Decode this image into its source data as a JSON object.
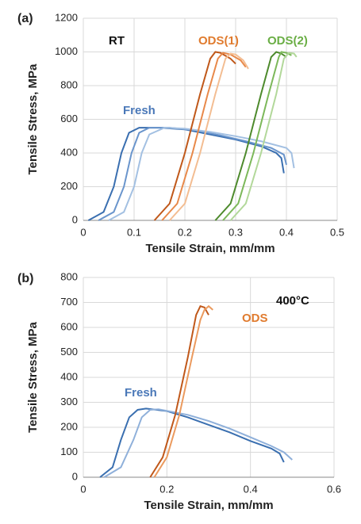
{
  "chart_data": [
    {
      "type": "line",
      "label": "(a)",
      "xlabel": "Tensile Strain, mm/mm",
      "ylabel": "Tensile Stress, MPa",
      "xlim": [
        0,
        0.5
      ],
      "xticks": [
        0,
        0.1,
        0.2,
        0.3,
        0.4,
        0.5
      ],
      "ylim": [
        0,
        1200
      ],
      "yticks": [
        0,
        200,
        400,
        600,
        800,
        1000,
        1200
      ],
      "grid": true,
      "annotations": [
        {
          "text": "RT",
          "color": "#111111"
        },
        {
          "text": "Fresh",
          "color": "#4a78b8"
        },
        {
          "text": "ODS(1)",
          "color": "#e07b2e"
        },
        {
          "text": "ODS(2)",
          "color": "#6aae45"
        }
      ],
      "series": [
        {
          "color": "#3a6fb0",
          "x": [
            0.01,
            0.04,
            0.06,
            0.075,
            0.09,
            0.11,
            0.15,
            0.2,
            0.25,
            0.3,
            0.35,
            0.38,
            0.39,
            0.395
          ],
          "values": [
            0,
            50,
            200,
            400,
            520,
            550,
            550,
            540,
            510,
            480,
            440,
            400,
            370,
            280
          ]
        },
        {
          "color": "#6a95cc",
          "x": [
            0.03,
            0.06,
            0.08,
            0.095,
            0.11,
            0.13,
            0.17,
            0.22,
            0.27,
            0.32,
            0.37,
            0.395,
            0.4
          ],
          "values": [
            0,
            50,
            200,
            400,
            520,
            550,
            550,
            535,
            505,
            470,
            430,
            390,
            330
          ]
        },
        {
          "color": "#a3c0e2",
          "x": [
            0.05,
            0.08,
            0.1,
            0.115,
            0.13,
            0.16,
            0.2,
            0.25,
            0.3,
            0.35,
            0.4,
            0.41,
            0.415
          ],
          "values": [
            0,
            50,
            200,
            400,
            510,
            550,
            545,
            525,
            500,
            470,
            430,
            400,
            310
          ]
        },
        {
          "color": "#c0581a",
          "x": [
            0.14,
            0.17,
            0.2,
            0.23,
            0.25,
            0.26,
            0.27,
            0.29,
            0.3
          ],
          "values": [
            0,
            100,
            400,
            750,
            960,
            1000,
            995,
            960,
            930
          ]
        },
        {
          "color": "#e8894a",
          "x": [
            0.155,
            0.185,
            0.215,
            0.245,
            0.265,
            0.275,
            0.29,
            0.31,
            0.32
          ],
          "values": [
            0,
            100,
            400,
            750,
            960,
            995,
            985,
            950,
            910
          ]
        },
        {
          "color": "#f3bd92",
          "x": [
            0.17,
            0.2,
            0.23,
            0.26,
            0.28,
            0.29,
            0.3,
            0.315,
            0.325
          ],
          "values": [
            0,
            100,
            400,
            750,
            960,
            990,
            985,
            950,
            900
          ]
        },
        {
          "color": "#4d8a2c",
          "x": [
            0.26,
            0.29,
            0.32,
            0.35,
            0.37,
            0.38,
            0.39,
            0.4
          ],
          "values": [
            0,
            100,
            400,
            750,
            970,
            1000,
            990,
            970
          ]
        },
        {
          "color": "#7cb85a",
          "x": [
            0.275,
            0.305,
            0.335,
            0.365,
            0.385,
            0.39,
            0.4,
            0.41
          ],
          "values": [
            0,
            100,
            400,
            750,
            970,
            1000,
            995,
            980
          ]
        },
        {
          "color": "#b2d89a",
          "x": [
            0.29,
            0.32,
            0.35,
            0.38,
            0.395,
            0.405,
            0.415,
            0.42
          ],
          "values": [
            0,
            100,
            400,
            750,
            960,
            995,
            990,
            970
          ]
        }
      ]
    },
    {
      "type": "line",
      "label": "(b)",
      "xlabel": "Tensile Strain, mm/mm",
      "ylabel": "Tensile Stress, MPa",
      "xlim": [
        0,
        0.6
      ],
      "xticks": [
        0,
        0.2,
        0.4,
        0.6
      ],
      "ylim": [
        0,
        800
      ],
      "yticks": [
        0,
        100,
        200,
        300,
        400,
        500,
        600,
        700,
        800
      ],
      "grid": true,
      "annotations": [
        {
          "text": "400°C",
          "color": "#111111"
        },
        {
          "text": "ODS",
          "color": "#e07b2e"
        },
        {
          "text": "Fresh",
          "color": "#4a78b8"
        }
      ],
      "series": [
        {
          "color": "#3a6fb0",
          "x": [
            0.04,
            0.07,
            0.09,
            0.11,
            0.13,
            0.15,
            0.2,
            0.25,
            0.3,
            0.35,
            0.4,
            0.45,
            0.47,
            0.48
          ],
          "values": [
            0,
            40,
            150,
            240,
            270,
            275,
            265,
            240,
            210,
            180,
            145,
            115,
            95,
            60
          ]
        },
        {
          "color": "#8fb0da",
          "x": [
            0.05,
            0.09,
            0.12,
            0.14,
            0.16,
            0.18,
            0.25,
            0.3,
            0.35,
            0.4,
            0.45,
            0.48,
            0.5
          ],
          "values": [
            0,
            40,
            150,
            240,
            270,
            272,
            250,
            225,
            195,
            160,
            125,
            100,
            70
          ]
        },
        {
          "color": "#c0581a",
          "x": [
            0.16,
            0.19,
            0.22,
            0.25,
            0.27,
            0.28,
            0.29,
            0.3
          ],
          "values": [
            0,
            80,
            250,
            480,
            650,
            685,
            680,
            650
          ]
        },
        {
          "color": "#eb9a5e",
          "x": [
            0.17,
            0.2,
            0.23,
            0.26,
            0.28,
            0.29,
            0.3,
            0.31
          ],
          "values": [
            0,
            80,
            250,
            480,
            630,
            670,
            685,
            670
          ]
        }
      ]
    }
  ]
}
